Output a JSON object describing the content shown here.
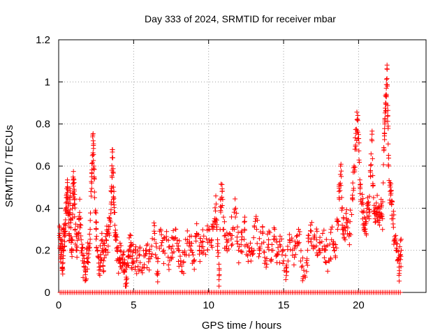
{
  "chart_data": {
    "type": "scatter",
    "title": "Day 333 of 2024, SRMTID for receiver mbar",
    "xlabel": "GPS time / hours",
    "ylabel": "SRMTID / TECUs",
    "xlim": [
      0,
      24.5
    ],
    "ylim": [
      0,
      1.2
    ],
    "xticks": [
      0,
      5,
      10,
      15,
      20
    ],
    "xtick_labels": [
      "0",
      "5",
      "10",
      "15",
      "20"
    ],
    "yticks": [
      0,
      0.2,
      0.4,
      0.6,
      0.8,
      1.0,
      1.2
    ],
    "ytick_labels": [
      "0",
      "0.2",
      "0.4",
      "0.6",
      "0.8",
      "1",
      "1.2"
    ],
    "grid": true,
    "marker": "+",
    "color": "#ff0000",
    "series": [
      {
        "name": "SRMTID",
        "points": [
          [
            0.05,
            0.27
          ],
          [
            0.1,
            0.22
          ],
          [
            0.15,
            0.18
          ],
          [
            0.2,
            0.25
          ],
          [
            0.25,
            0.12
          ],
          [
            0.3,
            0.2
          ],
          [
            0.35,
            0.3
          ],
          [
            0.4,
            0.22
          ],
          [
            0.45,
            0.32
          ],
          [
            0.5,
            0.4
          ],
          [
            0.55,
            0.43
          ],
          [
            0.6,
            0.5
          ],
          [
            0.65,
            0.38
          ],
          [
            0.7,
            0.28
          ],
          [
            0.75,
            0.45
          ],
          [
            0.8,
            0.35
          ],
          [
            0.85,
            0.19
          ],
          [
            0.9,
            0.25
          ],
          [
            0.95,
            0.47
          ],
          [
            1.0,
            0.52
          ],
          [
            1.05,
            0.44
          ],
          [
            1.1,
            0.3
          ],
          [
            1.2,
            0.22
          ],
          [
            1.3,
            0.28
          ],
          [
            1.4,
            0.38
          ],
          [
            1.5,
            0.25
          ],
          [
            1.6,
            0.15
          ],
          [
            1.7,
            0.12
          ],
          [
            1.8,
            0.1
          ],
          [
            1.9,
            0.16
          ],
          [
            2.0,
            0.22
          ],
          [
            2.1,
            0.3
          ],
          [
            2.2,
            0.55
          ],
          [
            2.25,
            0.65
          ],
          [
            2.3,
            0.72
          ],
          [
            2.35,
            0.6
          ],
          [
            2.4,
            0.45
          ],
          [
            2.5,
            0.3
          ],
          [
            2.6,
            0.2
          ],
          [
            2.7,
            0.12
          ],
          [
            2.8,
            0.18
          ],
          [
            2.9,
            0.25
          ],
          [
            3.0,
            0.15
          ],
          [
            3.1,
            0.2
          ],
          [
            3.2,
            0.28
          ],
          [
            3.3,
            0.22
          ],
          [
            3.4,
            0.35
          ],
          [
            3.5,
            0.42
          ],
          [
            3.55,
            0.58
          ],
          [
            3.6,
            0.64
          ],
          [
            3.65,
            0.5
          ],
          [
            3.7,
            0.38
          ],
          [
            3.8,
            0.25
          ],
          [
            3.9,
            0.2
          ],
          [
            4.0,
            0.15
          ],
          [
            4.1,
            0.2
          ],
          [
            4.2,
            0.12
          ],
          [
            4.3,
            0.18
          ],
          [
            4.4,
            0.1
          ],
          [
            4.5,
            0.06
          ],
          [
            4.6,
            0.14
          ],
          [
            4.7,
            0.2
          ],
          [
            4.8,
            0.22
          ],
          [
            4.9,
            0.16
          ],
          [
            5.0,
            0.2
          ],
          [
            5.2,
            0.15
          ],
          [
            5.4,
            0.18
          ],
          [
            5.6,
            0.12
          ],
          [
            5.8,
            0.2
          ],
          [
            6.0,
            0.16
          ],
          [
            6.2,
            0.22
          ],
          [
            6.4,
            0.28
          ],
          [
            6.6,
            0.1
          ],
          [
            6.8,
            0.3
          ],
          [
            7.0,
            0.2
          ],
          [
            7.2,
            0.25
          ],
          [
            7.4,
            0.15
          ],
          [
            7.6,
            0.22
          ],
          [
            7.8,
            0.26
          ],
          [
            8.0,
            0.2
          ],
          [
            8.2,
            0.1
          ],
          [
            8.4,
            0.18
          ],
          [
            8.6,
            0.25
          ],
          [
            8.8,
            0.22
          ],
          [
            9.0,
            0.15
          ],
          [
            9.2,
            0.28
          ],
          [
            9.4,
            0.2
          ],
          [
            9.6,
            0.24
          ],
          [
            9.8,
            0.18
          ],
          [
            10.0,
            0.3
          ],
          [
            10.2,
            0.25
          ],
          [
            10.4,
            0.35
          ],
          [
            10.5,
            0.42
          ],
          [
            10.6,
            0.2
          ],
          [
            10.7,
            0.08
          ],
          [
            10.8,
            0.44
          ],
          [
            10.9,
            0.48
          ],
          [
            11.0,
            0.3
          ],
          [
            11.2,
            0.22
          ],
          [
            11.4,
            0.28
          ],
          [
            11.6,
            0.3
          ],
          [
            11.8,
            0.4
          ],
          [
            12.0,
            0.2
          ],
          [
            12.2,
            0.25
          ],
          [
            12.4,
            0.3
          ],
          [
            12.6,
            0.22
          ],
          [
            12.8,
            0.18
          ],
          [
            13.0,
            0.26
          ],
          [
            13.2,
            0.3
          ],
          [
            13.4,
            0.2
          ],
          [
            13.6,
            0.28
          ],
          [
            13.8,
            0.15
          ],
          [
            14.0,
            0.25
          ],
          [
            14.2,
            0.2
          ],
          [
            14.4,
            0.3
          ],
          [
            14.6,
            0.18
          ],
          [
            14.8,
            0.22
          ],
          [
            15.0,
            0.15
          ],
          [
            15.2,
            0.12
          ],
          [
            15.4,
            0.25
          ],
          [
            15.6,
            0.2
          ],
          [
            15.8,
            0.18
          ],
          [
            16.0,
            0.3
          ],
          [
            16.2,
            0.12
          ],
          [
            16.4,
            0.08
          ],
          [
            16.6,
            0.2
          ],
          [
            16.8,
            0.32
          ],
          [
            17.0,
            0.22
          ],
          [
            17.2,
            0.25
          ],
          [
            17.4,
            0.2
          ],
          [
            17.6,
            0.28
          ],
          [
            17.8,
            0.2
          ],
          [
            18.0,
            0.15
          ],
          [
            18.2,
            0.25
          ],
          [
            18.4,
            0.2
          ],
          [
            18.6,
            0.3
          ],
          [
            18.7,
            0.45
          ],
          [
            18.8,
            0.6
          ],
          [
            18.9,
            0.4
          ],
          [
            19.0,
            0.3
          ],
          [
            19.1,
            0.25
          ],
          [
            19.2,
            0.35
          ],
          [
            19.4,
            0.28
          ],
          [
            19.6,
            0.45
          ],
          [
            19.7,
            0.6
          ],
          [
            19.8,
            0.7
          ],
          [
            19.9,
            0.82
          ],
          [
            20.0,
            0.75
          ],
          [
            20.1,
            0.5
          ],
          [
            20.2,
            0.42
          ],
          [
            20.3,
            0.38
          ],
          [
            20.4,
            0.3
          ],
          [
            20.5,
            0.28
          ],
          [
            20.6,
            0.45
          ],
          [
            20.7,
            0.35
          ],
          [
            20.8,
            0.55
          ],
          [
            20.9,
            0.72
          ],
          [
            21.0,
            0.45
          ],
          [
            21.1,
            0.35
          ],
          [
            21.2,
            0.4
          ],
          [
            21.3,
            0.38
          ],
          [
            21.4,
            0.32
          ],
          [
            21.5,
            0.42
          ],
          [
            21.6,
            0.35
          ],
          [
            21.7,
            0.68
          ],
          [
            21.75,
            0.8
          ],
          [
            21.8,
            0.9
          ],
          [
            21.85,
            0.97
          ],
          [
            21.9,
            1.08
          ],
          [
            21.95,
            0.84
          ],
          [
            22.0,
            0.6
          ],
          [
            22.1,
            0.48
          ],
          [
            22.2,
            0.42
          ],
          [
            22.3,
            0.35
          ],
          [
            22.4,
            0.25
          ],
          [
            22.5,
            0.2
          ],
          [
            22.6,
            0.15
          ],
          [
            22.7,
            0.12
          ],
          [
            22.8,
            0.18
          ],
          [
            22.85,
            0.2
          ]
        ]
      }
    ],
    "zero_markers_x_range": [
      0.1,
      22.8
    ]
  }
}
